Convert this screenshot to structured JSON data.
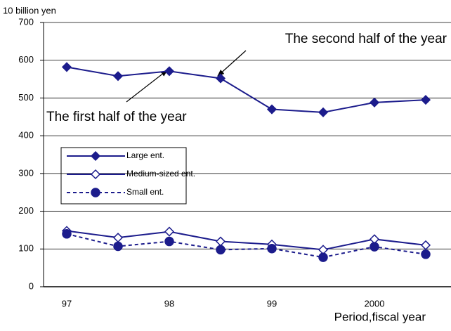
{
  "chart_data": {
    "type": "line",
    "y_label": "10 billion yen",
    "x_label": "Period,fiscal year",
    "annotations": [
      "The second half of the year",
      "The first half of the year"
    ],
    "categories": [
      "97",
      null,
      "98",
      null,
      "99",
      null,
      "2000",
      null
    ],
    "series": [
      {
        "name": "Large ent.",
        "color": "#1c1c8c",
        "marker": "diamond",
        "marker_filled": true,
        "line_style": "solid",
        "values": [
          582,
          558,
          571,
          552,
          470,
          462,
          488,
          495
        ]
      },
      {
        "name": "Medium-sized ent.",
        "color": "#1c1c8c",
        "marker": "diamond",
        "marker_filled": false,
        "line_style": "solid",
        "values": [
          148,
          130,
          146,
          120,
          112,
          98,
          126,
          110
        ]
      },
      {
        "name": "Small ent.",
        "color": "#1c1c8c",
        "marker": "circle",
        "marker_filled": true,
        "line_style": "dashed",
        "values": [
          140,
          107,
          120,
          98,
          101,
          78,
          106,
          86
        ]
      }
    ],
    "ylim": [
      0,
      700
    ],
    "yticks": [
      0,
      100,
      200,
      300,
      400,
      500,
      600,
      700
    ],
    "grid": true
  }
}
